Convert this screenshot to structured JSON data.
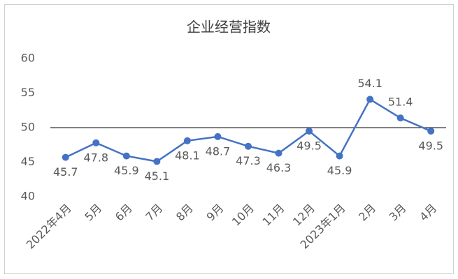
{
  "chart_data": {
    "type": "line",
    "title": "企业经营指数",
    "categories": [
      "2022年4月",
      "5月",
      "6月",
      "7月",
      "8月",
      "9月",
      "10月",
      "11月",
      "12月",
      "2023年1月",
      "2月",
      "3月",
      "4月"
    ],
    "series": [
      {
        "name": "企业经营指数",
        "color": "#4472c4",
        "values": [
          45.7,
          47.8,
          45.9,
          45.1,
          48.1,
          48.7,
          47.3,
          46.3,
          49.5,
          45.9,
          54.1,
          51.4,
          49.5
        ]
      }
    ],
    "ylim": [
      40,
      60
    ],
    "yticks": [
      40,
      45,
      50,
      55,
      60
    ],
    "grid": false,
    "reference_line": 50,
    "reference_color": "#000000"
  }
}
